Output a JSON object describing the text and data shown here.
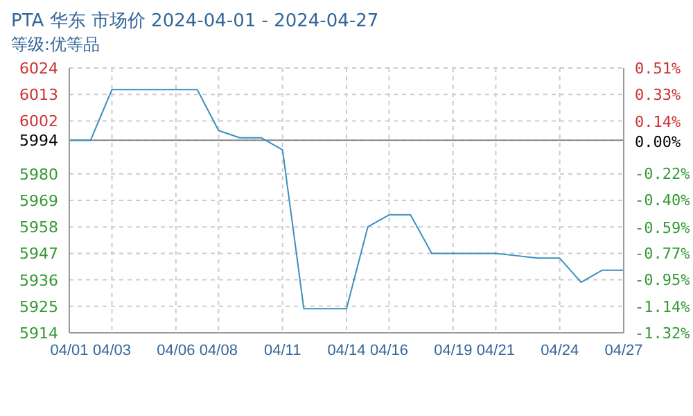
{
  "chart_data": {
    "type": "line",
    "title": "PTA 华东 市场价 2024-04-01 - 2024-04-27",
    "subtitle": "等级:优等品",
    "x": [
      "--04-01",
      "--04-02",
      "--04-03",
      "--04-07",
      "--04-08",
      "--04-09",
      "--04-10",
      "--04-11",
      "--04-12",
      "--04-14",
      "--04-15",
      "--04-16",
      "--04-17",
      "--04-18",
      "--04-21",
      "--04-22",
      "--04-23",
      "--04-24",
      "--04-25",
      "--04-26",
      "--04-27"
    ],
    "series": [
      {
        "color": "#3a8fc0",
        "values": [
          5994,
          5994,
          6015,
          6015,
          5998,
          5995,
          5995,
          5990,
          5924,
          5924,
          5958,
          5963,
          5963,
          5947,
          5947,
          5946,
          5945,
          5945,
          5935,
          5940,
          5940
        ]
      }
    ],
    "xlim": [
      "--04-01",
      "--04-27"
    ],
    "xticks": [
      {
        "value": "--04-01",
        "label": "04/01"
      },
      {
        "value": "--04-03",
        "label": "04/03"
      },
      {
        "value": "--04-06",
        "label": "04/06"
      },
      {
        "value": "--04-08",
        "label": "04/08"
      },
      {
        "value": "--04-11",
        "label": "04/11"
      },
      {
        "value": "--04-14",
        "label": "04/14"
      },
      {
        "value": "--04-16",
        "label": "04/16"
      },
      {
        "value": "--04-19",
        "label": "04/19"
      },
      {
        "value": "--04-21",
        "label": "04/21"
      },
      {
        "value": "--04-24",
        "label": "04/24"
      },
      {
        "value": "--04-27",
        "label": "04/27"
      }
    ],
    "ylim": [
      5914,
      6024
    ],
    "yticks": [
      5914,
      5925,
      5936,
      5947,
      5958,
      5969,
      5980,
      5994,
      6002,
      6013,
      6024
    ],
    "y2lim": [
      -1.32,
      0.51
    ],
    "y2ticks": [
      {
        "value": -1.32,
        "label": "-1.32%"
      },
      {
        "value": -1.14,
        "label": "-1.14%"
      },
      {
        "value": -0.95,
        "label": "-0.95%"
      },
      {
        "value": -0.77,
        "label": "-0.77%"
      },
      {
        "value": -0.59,
        "label": "-0.59%"
      },
      {
        "value": -0.4,
        "label": "-0.40%"
      },
      {
        "value": -0.22,
        "label": "-0.22%"
      },
      {
        "value": 0,
        "label": "0.00%"
      },
      {
        "value": 0.14,
        "label": "0.14%"
      },
      {
        "value": 0.33,
        "label": "0.33%"
      },
      {
        "value": 0.51,
        "label": "0.51%"
      }
    ],
    "ref_lines": [
      {
        "axis": "y",
        "value": 5994,
        "color": "#888888"
      }
    ],
    "grid": true,
    "marker": "none",
    "line_style": "solid"
  }
}
